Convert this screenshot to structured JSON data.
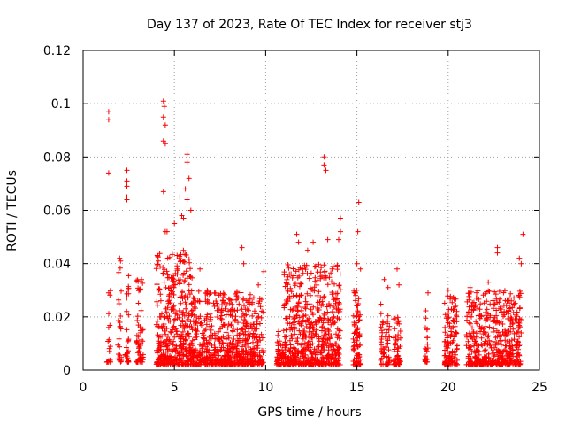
{
  "chart_data": {
    "type": "scatter",
    "title": "Day 137 of 2023, Rate Of TEC Index for receiver stj3",
    "xlabel": "GPS time / hours",
    "ylabel": "ROTI / TECUs",
    "xlim": [
      0,
      25
    ],
    "ylim": [
      0,
      0.12
    ],
    "xticks": [
      0,
      5,
      10,
      15,
      20,
      25
    ],
    "yticks": [
      0,
      0.02,
      0.04,
      0.06,
      0.08,
      0.1,
      0.12
    ],
    "xtick_labels": [
      "0",
      "5",
      "10",
      "15",
      "20",
      "25"
    ],
    "ytick_labels": [
      "0",
      "0.02",
      "0.04",
      "0.06",
      "0.08",
      "0.1",
      "0.12"
    ],
    "grid": true,
    "marker": "+",
    "color": "#ff0000",
    "clusters": [
      {
        "x0": 1.3,
        "x1": 1.5,
        "n": 18,
        "ymin": 0.003,
        "ymax": 0.03,
        "extra": [
          [
            1.4,
            0.097
          ],
          [
            1.4,
            0.094
          ],
          [
            1.4,
            0.074
          ],
          [
            1.4,
            0.029
          ],
          [
            1.4,
            0.016
          ]
        ]
      },
      {
        "x0": 1.9,
        "x1": 2.1,
        "n": 25,
        "ymin": 0.003,
        "ymax": 0.04,
        "extra": [
          [
            2.0,
            0.042
          ],
          [
            2.05,
            0.041
          ]
        ]
      },
      {
        "x0": 2.3,
        "x1": 2.5,
        "n": 30,
        "ymin": 0.003,
        "ymax": 0.038,
        "extra": [
          [
            2.4,
            0.075
          ],
          [
            2.4,
            0.071
          ],
          [
            2.4,
            0.069
          ],
          [
            2.4,
            0.065
          ],
          [
            2.4,
            0.064
          ]
        ]
      },
      {
        "x0": 2.9,
        "x1": 3.3,
        "n": 60,
        "ymin": 0.003,
        "ymax": 0.035
      },
      {
        "x0": 4.0,
        "x1": 6.0,
        "n": 420,
        "ymin": 0.002,
        "ymax": 0.045,
        "extra": [
          [
            4.4,
            0.101
          ],
          [
            4.45,
            0.099
          ],
          [
            4.4,
            0.095
          ],
          [
            4.5,
            0.092
          ],
          [
            4.4,
            0.086
          ],
          [
            4.5,
            0.085
          ],
          [
            4.4,
            0.067
          ],
          [
            5.3,
            0.065
          ],
          [
            5.4,
            0.058
          ],
          [
            5.7,
            0.081
          ],
          [
            5.7,
            0.078
          ],
          [
            5.8,
            0.072
          ],
          [
            5.6,
            0.068
          ],
          [
            5.9,
            0.06
          ],
          [
            4.5,
            0.052
          ],
          [
            4.6,
            0.052
          ],
          [
            5.0,
            0.055
          ],
          [
            5.5,
            0.057
          ],
          [
            5.7,
            0.064
          ]
        ]
      },
      {
        "x0": 6.0,
        "x1": 9.0,
        "n": 520,
        "ymin": 0.002,
        "ymax": 0.03,
        "extra": [
          [
            8.7,
            0.046
          ],
          [
            8.8,
            0.04
          ],
          [
            7.2,
            0.029
          ],
          [
            6.4,
            0.038
          ]
        ]
      },
      {
        "x0": 9.0,
        "x1": 9.9,
        "n": 130,
        "ymin": 0.002,
        "ymax": 0.03,
        "extra": [
          [
            9.9,
            0.037
          ],
          [
            9.6,
            0.032
          ]
        ]
      },
      {
        "x0": 10.6,
        "x1": 11.0,
        "n": 55,
        "ymin": 0.002,
        "ymax": 0.015
      },
      {
        "x0": 11.0,
        "x1": 14.1,
        "n": 600,
        "ymin": 0.002,
        "ymax": 0.04,
        "extra": [
          [
            13.2,
            0.08
          ],
          [
            13.2,
            0.077
          ],
          [
            13.3,
            0.075
          ],
          [
            11.7,
            0.051
          ],
          [
            11.8,
            0.048
          ],
          [
            12.6,
            0.048
          ],
          [
            13.4,
            0.049
          ],
          [
            14.1,
            0.057
          ],
          [
            14.1,
            0.052
          ],
          [
            14.0,
            0.049
          ],
          [
            12.3,
            0.045
          ]
        ]
      },
      {
        "x0": 14.8,
        "x1": 15.2,
        "n": 90,
        "ymin": 0.002,
        "ymax": 0.03,
        "extra": [
          [
            15.1,
            0.063
          ],
          [
            15.05,
            0.052
          ],
          [
            15.0,
            0.04
          ],
          [
            15.2,
            0.038
          ]
        ]
      },
      {
        "x0": 16.3,
        "x1": 16.8,
        "n": 60,
        "ymin": 0.002,
        "ymax": 0.025,
        "extra": [
          [
            16.5,
            0.034
          ],
          [
            16.7,
            0.031
          ]
        ]
      },
      {
        "x0": 17.0,
        "x1": 17.4,
        "n": 55,
        "ymin": 0.002,
        "ymax": 0.02,
        "extra": [
          [
            17.2,
            0.038
          ],
          [
            17.3,
            0.032
          ]
        ]
      },
      {
        "x0": 18.7,
        "x1": 18.9,
        "n": 25,
        "ymin": 0.003,
        "ymax": 0.03
      },
      {
        "x0": 19.8,
        "x1": 20.5,
        "n": 120,
        "ymin": 0.002,
        "ymax": 0.028,
        "extra": [
          [
            20.0,
            0.03
          ]
        ]
      },
      {
        "x0": 21.0,
        "x1": 24.0,
        "n": 480,
        "ymin": 0.002,
        "ymax": 0.03,
        "extra": [
          [
            22.7,
            0.046
          ],
          [
            22.7,
            0.044
          ],
          [
            24.1,
            0.051
          ],
          [
            23.9,
            0.042
          ],
          [
            24.0,
            0.04
          ],
          [
            21.2,
            0.031
          ],
          [
            22.2,
            0.033
          ]
        ]
      }
    ]
  }
}
